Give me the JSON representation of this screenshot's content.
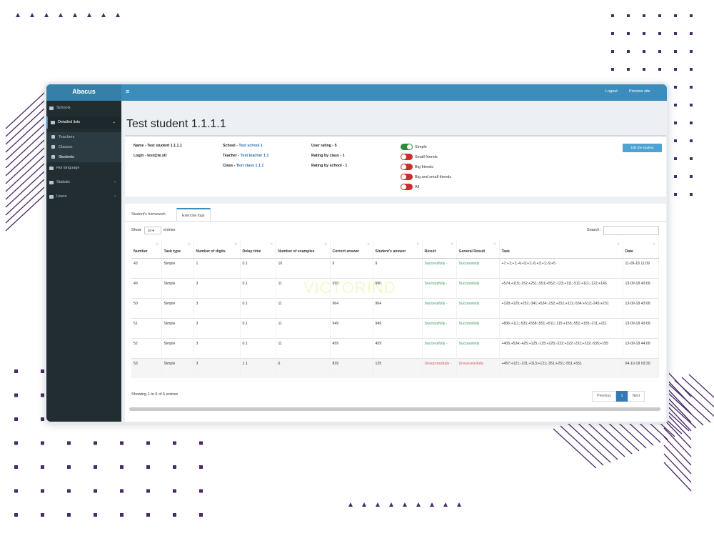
{
  "sidebar": {
    "brand": "Abacus",
    "menu": [
      {
        "label": "Schools",
        "level": 1
      },
      {
        "label": "Detailed lists",
        "level": 1,
        "active": true
      },
      {
        "label": "Teachers",
        "level": 2
      },
      {
        "label": "Classes",
        "level": 2
      },
      {
        "label": "Students",
        "level": 2,
        "current": true
      },
      {
        "label": "Hui language",
        "level": 1
      },
      {
        "label": "Statistic",
        "level": 1
      },
      {
        "label": "Users",
        "level": 1
      }
    ]
  },
  "topbar": {
    "links": [
      "Logout",
      "Preview site"
    ]
  },
  "page_title": "Test student 1.1.1.1",
  "profile": {
    "name": "Name - Test student 1.1.1.1",
    "login": "Login - test@te.stt",
    "school": {
      "label": "School -",
      "value": "Test school 1"
    },
    "teacher": {
      "label": "Teacher -",
      "value": "Test teacher 1.1"
    },
    "class": {
      "label": "Class -",
      "value": "Test class 1.1.1"
    },
    "user_rating": "User rating - 5",
    "rating_by_class": "Rating by class - 1",
    "rating_by_school": "Rating by school - 1",
    "edit_button": "Edit the student"
  },
  "toggles": [
    {
      "label": "Simple",
      "on": true
    },
    {
      "label": "Small friends",
      "on": false
    },
    {
      "label": "Big friends",
      "on": false
    },
    {
      "label": "Big and small friends",
      "on": false
    },
    {
      "label": "All",
      "on": false
    }
  ],
  "tabs": [
    "Student's homework",
    "Exercise logs"
  ],
  "active_tab": 1,
  "table_controls": {
    "show": "Show",
    "page_size": "10",
    "entries": "entries",
    "search": "Search:"
  },
  "watermark": "VICTORIND",
  "table": {
    "columns": [
      "Number",
      "Task type",
      "Number of digits",
      "Delay time",
      "Number of examples",
      "Correct answer",
      "Student's answer",
      "Result",
      "General Result",
      "Task",
      "Date"
    ],
    "rows": [
      {
        "color": "#2f9a5c",
        "cells": [
          "43",
          "Simple",
          "1",
          "0.1",
          "10",
          "9",
          "9",
          "Successfully -",
          "Successfully",
          "+7;+1;+1;-4;+3;+1;-6;+3;+1;-9;+5",
          "11-09-18 11:09"
        ]
      },
      {
        "color": "#2f9a5c",
        "cells": [
          "49",
          "Simple",
          "3",
          "0.1",
          "11",
          "990",
          "990",
          "Successfully -",
          "Successfully",
          "+574;+115;-152;+251;-551;+552;-123;+111;-511;+111;-122;+145",
          "13-09-18 43:09"
        ]
      },
      {
        "color": "#2f9a5c",
        "cells": [
          "50",
          "Simple",
          "3",
          "0.1",
          "11",
          "964",
          "964",
          "Successfully -",
          "Successfully",
          "+128;+125;+251;-341;+534;-152;+251;+111;-534;+512;-245;+231",
          "13-09-18 43:09"
        ]
      },
      {
        "color": "#2f9a5c",
        "cells": [
          "51",
          "Simple",
          "3",
          "0.1",
          "11",
          "949",
          "949",
          "Successfully -",
          "Successfully",
          "+806;+111;-531;+558;-551;+511;-115;+155;-551;+155;-211;+211",
          "13-09-18 43:09"
        ]
      },
      {
        "color": "#2f9a5c",
        "cells": [
          "52",
          "Simple",
          "3",
          "0.1",
          "11",
          "459",
          "459",
          "Successfully -",
          "Successfully",
          "+405;+534;-425;+125;-125;+225;-222;+322;-231;+232;-535;+155",
          "13-09-18 44:09"
        ]
      },
      {
        "color": "#d9534f",
        "cells": [
          "53",
          "Simple",
          "3",
          "1.1",
          "6",
          "839",
          "125",
          "Unsuccessfully -",
          "Unsuccessfully",
          "+457;+121;-231;+113;+121;-351;+251;-551;+551",
          "04-10-18 03:30"
        ]
      }
    ]
  },
  "footer": {
    "info": "Showing 1 to 6 of 6 entries",
    "previous": "Previous",
    "page": "1",
    "next": "Next"
  }
}
